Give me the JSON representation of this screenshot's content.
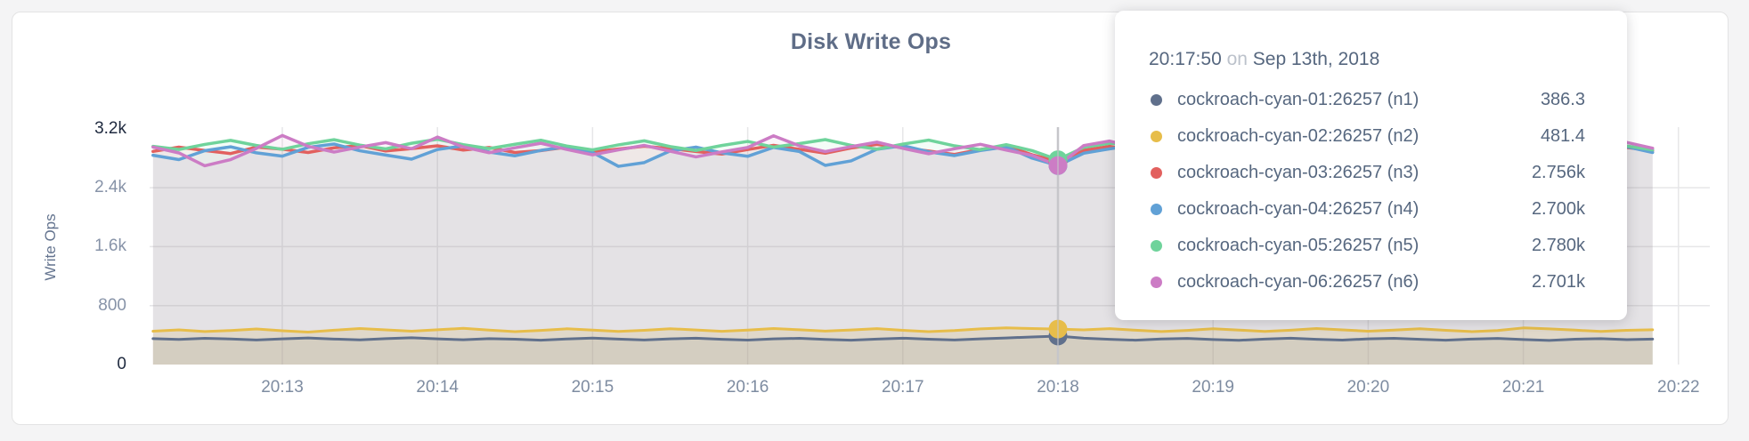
{
  "page": {
    "background": "#f4f4f5"
  },
  "header": {
    "title": "Disk Write Ops"
  },
  "tooltip": {
    "time": "20:17:50",
    "on_word": "on",
    "date": "Sep 13th, 2018",
    "rows": [
      {
        "name": "cockroach-cyan-01:26257 (n1)",
        "value": "386.3",
        "color": "#60708c"
      },
      {
        "name": "cockroach-cyan-02:26257 (n2)",
        "value": "481.4",
        "color": "#e7bd4a"
      },
      {
        "name": "cockroach-cyan-03:26257 (n3)",
        "value": "2.756k",
        "color": "#e2605e"
      },
      {
        "name": "cockroach-cyan-04:26257 (n4)",
        "value": "2.700k",
        "color": "#61a1d6"
      },
      {
        "name": "cockroach-cyan-05:26257 (n5)",
        "value": "2.780k",
        "color": "#6fd39b"
      },
      {
        "name": "cockroach-cyan-06:26257 (n6)",
        "value": "2.701k",
        "color": "#cc7cc5"
      }
    ]
  },
  "chart_data": {
    "type": "line",
    "title": "Disk Write Ops",
    "xlabel": "",
    "ylabel": "Write Ops",
    "x_start": "20:12:10",
    "x_step_seconds": 10,
    "x_tick_labels": [
      "20:13",
      "20:14",
      "20:15",
      "20:16",
      "20:17",
      "20:18",
      "20:19",
      "20:20",
      "20:21",
      "20:22"
    ],
    "y_ticks": [
      {
        "label": "0",
        "value": 0,
        "emphasis": true
      },
      {
        "label": "800",
        "value": 800,
        "emphasis": false
      },
      {
        "label": "1.6k",
        "value": 1600,
        "emphasis": false
      },
      {
        "label": "2.4k",
        "value": 2400,
        "emphasis": false
      },
      {
        "label": "3.2k",
        "value": 3200,
        "emphasis": true
      }
    ],
    "ylim": [
      0,
      3450
    ],
    "grid": true,
    "legend_position": "tooltip-only",
    "hover": {
      "index": 35,
      "time": "20:17:50",
      "date": "Sep 13th, 2018",
      "values_display": [
        "386.3",
        "481.4",
        "2.756k",
        "2.700k",
        "2.780k",
        "2.701k"
      ]
    },
    "series": [
      {
        "name": "cockroach-cyan-01:26257 (n1)",
        "color": "#60708c",
        "values": [
          352,
          341,
          356,
          347,
          334,
          349,
          361,
          346,
          335,
          351,
          363,
          348,
          336,
          352,
          344,
          331,
          347,
          359,
          345,
          333,
          349,
          357,
          343,
          332,
          348,
          356,
          341,
          330,
          346,
          358,
          344,
          333,
          349,
          361,
          374,
          386.3,
          357,
          342,
          331,
          347,
          355,
          340,
          329,
          345,
          357,
          343,
          332,
          348,
          356,
          342,
          330,
          346,
          354,
          339,
          328,
          344,
          352,
          338,
          346
        ]
      },
      {
        "name": "cockroach-cyan-02:26257 (n2)",
        "color": "#e7bd4a",
        "values": [
          452,
          471,
          448,
          462,
          483,
          459,
          441,
          466,
          488,
          471,
          453,
          472,
          491,
          468,
          447,
          463,
          485,
          467,
          449,
          464,
          486,
          469,
          451,
          467,
          489,
          472,
          454,
          469,
          487,
          465,
          446,
          461,
          484,
          498,
          489,
          481.4,
          470,
          487,
          466,
          448,
          463,
          485,
          468,
          450,
          466,
          488,
          471,
          453,
          468,
          486,
          464,
          447,
          462,
          497,
          484,
          467,
          449,
          465,
          472
        ]
      },
      {
        "name": "cockroach-cyan-03:26257 (n3)",
        "color": "#e2605e",
        "values": [
          2892,
          2950,
          2905,
          2863,
          2951,
          2923,
          2878,
          2941,
          2972,
          2899,
          2931,
          2968,
          2911,
          2946,
          2878,
          2903,
          2951,
          2886,
          2924,
          2963,
          2931,
          2892,
          2856,
          2918,
          2975,
          2921,
          2869,
          2939,
          2988,
          2942,
          2897,
          2851,
          2919,
          2966,
          2847,
          2756,
          2908,
          2961,
          2893,
          2934,
          2986,
          2938,
          2884,
          2947,
          2902,
          2861,
          2926,
          2974,
          2928,
          2877,
          2943,
          2992,
          2953,
          2904,
          2865,
          2923,
          2881,
          2945,
          2903
        ]
      },
      {
        "name": "cockroach-cyan-04:26257 (n4)",
        "color": "#61a1d6",
        "values": [
          2840,
          2781,
          2902,
          2955,
          2873,
          2828,
          2948,
          2993,
          2901,
          2843,
          2787,
          2918,
          2968,
          2884,
          2833,
          2906,
          2957,
          2879,
          2690,
          2741,
          2899,
          2951,
          2873,
          2826,
          2947,
          2891,
          2703,
          2764,
          2922,
          2971,
          2887,
          2836,
          2905,
          2954,
          2801,
          2700,
          2868,
          2927,
          2979,
          2898,
          2842,
          2913,
          2962,
          2881,
          2829,
          2899,
          2948,
          2871,
          2822,
          2893,
          2941,
          2864,
          2918,
          2969,
          2889,
          2838,
          2908,
          2956,
          2878
        ]
      },
      {
        "name": "cockroach-cyan-05:26257 (n5)",
        "color": "#6fd39b",
        "values": [
          2961,
          2918,
          2987,
          3042,
          2973,
          2921,
          2996,
          3051,
          2978,
          2926,
          3003,
          3057,
          2984,
          2931,
          2989,
          3044,
          2966,
          2913,
          2981,
          3036,
          2958,
          2905,
          2973,
          3028,
          2951,
          2998,
          3053,
          2975,
          2923,
          2991,
          3046,
          2968,
          2916,
          2984,
          2903,
          2780,
          2948,
          3003,
          2971,
          2919,
          2987,
          3041,
          2963,
          2911,
          2979,
          3033,
          2956,
          2904,
          2972,
          3026,
          2949,
          2997,
          3052,
          2974,
          2921,
          2989,
          3044,
          2966,
          2914
        ]
      },
      {
        "name": "cockroach-cyan-06:26257 (n6)",
        "color": "#cc7cc5",
        "values": [
          2951,
          2872,
          2698,
          2781,
          2934,
          3108,
          2962,
          2884,
          2951,
          3012,
          2928,
          3087,
          2953,
          2875,
          2942,
          3003,
          2919,
          2846,
          2913,
          2974,
          2896,
          2818,
          2885,
          2946,
          3104,
          2968,
          2890,
          2957,
          3018,
          2934,
          2861,
          2928,
          2989,
          2911,
          2838,
          2701,
          2972,
          3033,
          2949,
          2876,
          2943,
          3004,
          2926,
          3085,
          2947,
          2869,
          2936,
          2997,
          2913,
          2846,
          2907,
          2968,
          2890,
          3048,
          2964,
          2886,
          2953,
          3014,
          2936
        ]
      }
    ]
  }
}
